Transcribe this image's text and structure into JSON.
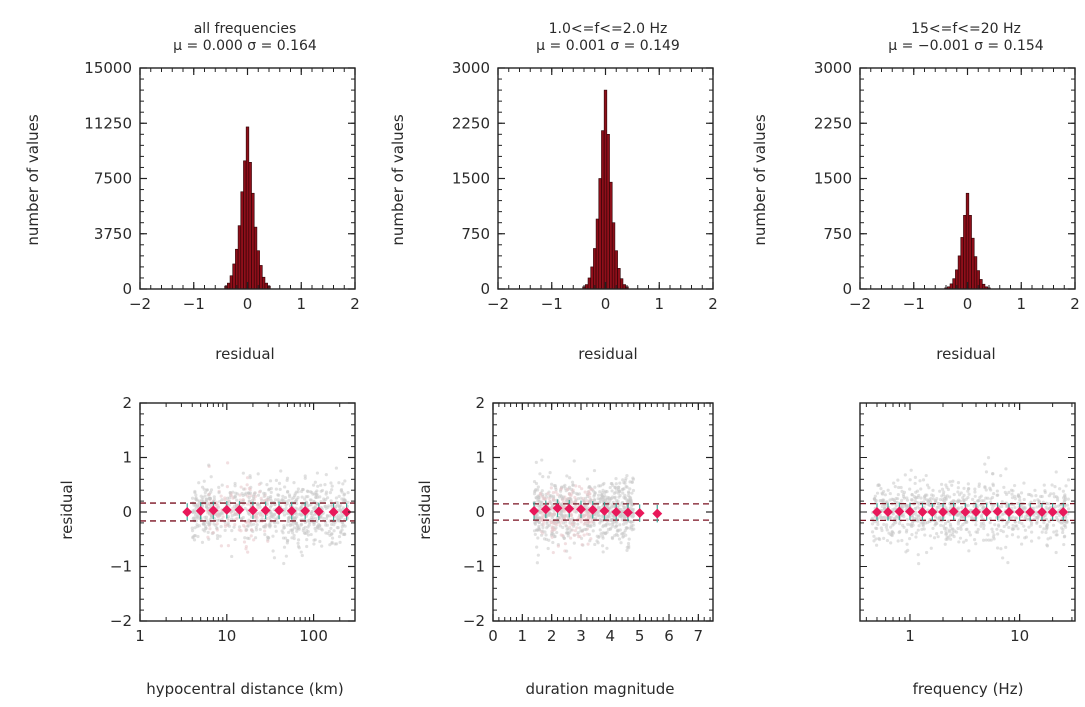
{
  "colors": {
    "bar_fill": "#8e0f1a",
    "bar_stroke": "#2b0205",
    "cloud": "#c8c8c8",
    "cloud_pink": "#e8c4c8",
    "marker": "#e8185a",
    "errbar_edge": "#3aa89a",
    "dashed": "#7a1020",
    "axis": "#222222"
  },
  "chart_data": [
    {
      "type": "bar",
      "subtype": "histogram",
      "title": "all frequencies",
      "stats": "μ = 0.000   σ = 0.164",
      "xlabel": "residual",
      "ylabel": "number of values",
      "xlim": [
        -2,
        2
      ],
      "ylim": [
        0,
        15000
      ],
      "xticks": [
        -2,
        -1,
        0,
        1,
        2
      ],
      "xtick_labels": [
        "−2",
        "−1",
        "0",
        "1",
        "2"
      ],
      "yticks": [
        0,
        3750,
        7500,
        11250,
        15000
      ],
      "ytick_labels": [
        "0",
        "3750",
        "7500",
        "11250",
        "15000"
      ],
      "bin_width": 0.05,
      "x": [
        -0.4,
        -0.35,
        -0.3,
        -0.25,
        -0.2,
        -0.15,
        -0.1,
        -0.05,
        0.0,
        0.05,
        0.1,
        0.15,
        0.2,
        0.25,
        0.3,
        0.35,
        0.4
      ],
      "values": [
        200,
        400,
        900,
        1700,
        2700,
        4300,
        6600,
        8700,
        11000,
        8600,
        6500,
        4200,
        2600,
        1600,
        800,
        400,
        200
      ]
    },
    {
      "type": "bar",
      "subtype": "histogram",
      "title": "1.0<=f<=2.0 Hz",
      "stats": "μ = 0.001   σ = 0.149",
      "xlabel": "residual",
      "ylabel": "number of values",
      "xlim": [
        -2,
        2
      ],
      "ylim": [
        0,
        3000
      ],
      "xticks": [
        -2,
        -1,
        0,
        1,
        2
      ],
      "xtick_labels": [
        "−2",
        "−1",
        "0",
        "1",
        "2"
      ],
      "yticks": [
        0,
        750,
        1500,
        2250,
        3000
      ],
      "ytick_labels": [
        "0",
        "750",
        "1500",
        "2250",
        "3000"
      ],
      "bin_width": 0.05,
      "x": [
        -0.4,
        -0.35,
        -0.3,
        -0.25,
        -0.2,
        -0.15,
        -0.1,
        -0.05,
        0.0,
        0.05,
        0.1,
        0.15,
        0.2,
        0.25,
        0.3,
        0.35,
        0.4
      ],
      "values": [
        30,
        60,
        150,
        300,
        550,
        950,
        1500,
        2150,
        2700,
        2100,
        1450,
        900,
        520,
        280,
        140,
        60,
        30
      ]
    },
    {
      "type": "bar",
      "subtype": "histogram",
      "title": "15<=f<=20 Hz",
      "stats": "μ = −0.001   σ = 0.154",
      "xlabel": "residual",
      "ylabel": "number of values",
      "xlim": [
        -2,
        2
      ],
      "ylim": [
        0,
        3000
      ],
      "xticks": [
        -2,
        -1,
        0,
        1,
        2
      ],
      "xtick_labels": [
        "−2",
        "−1",
        "0",
        "1",
        "2"
      ],
      "yticks": [
        0,
        750,
        1500,
        2250,
        3000
      ],
      "ytick_labels": [
        "0",
        "750",
        "1500",
        "2250",
        "3000"
      ],
      "bin_width": 0.05,
      "x": [
        -0.4,
        -0.35,
        -0.3,
        -0.25,
        -0.2,
        -0.15,
        -0.1,
        -0.05,
        0.0,
        0.05,
        0.1,
        0.15,
        0.2,
        0.25,
        0.3,
        0.35,
        0.4
      ],
      "values": [
        15,
        30,
        70,
        140,
        260,
        450,
        700,
        1000,
        1300,
        1000,
        690,
        440,
        250,
        130,
        65,
        30,
        15
      ]
    },
    {
      "type": "scatter",
      "xscale": "log",
      "xlabel": "hypocentral distance (km)",
      "ylabel": "residual",
      "xlim": [
        1,
        300
      ],
      "ylim": [
        -2,
        2
      ],
      "xticks": [
        1,
        10,
        100
      ],
      "xtick_labels": [
        "1",
        "10",
        "100"
      ],
      "yticks": [
        -2,
        -1,
        0,
        1,
        2
      ],
      "ytick_labels": [
        "−2",
        "−1",
        "0",
        "1",
        "2"
      ],
      "dashed_lines": [
        0.164,
        -0.164
      ],
      "cloud_x_range": [
        4,
        250
      ],
      "cloud_pink_x_range": [
        6,
        30
      ],
      "x": [
        3.5,
        5,
        7,
        10,
        14,
        20,
        28,
        40,
        56,
        80,
        115,
        170,
        240
      ],
      "values": [
        0.0,
        0.02,
        0.03,
        0.04,
        0.04,
        0.03,
        0.03,
        0.03,
        0.02,
        0.02,
        0.01,
        0.0,
        0.0
      ]
    },
    {
      "type": "scatter",
      "xlabel": "duration magnitude",
      "ylabel": "residual",
      "xlim": [
        0,
        7.5
      ],
      "ylim": [
        -2,
        2
      ],
      "xticks": [
        0,
        1,
        2,
        3,
        4,
        5,
        6,
        7
      ],
      "xtick_labels": [
        "0",
        "1",
        "2",
        "3",
        "4",
        "5",
        "6",
        "7"
      ],
      "yticks": [
        -2,
        -1,
        0,
        1,
        2
      ],
      "ytick_labels": [
        "−2",
        "−1",
        "0",
        "1",
        "2"
      ],
      "dashed_lines": [
        0.149,
        -0.149
      ],
      "cloud_x_range": [
        1.4,
        4.8
      ],
      "cloud_pink_x_range": [
        1.6,
        3.4
      ],
      "x": [
        1.4,
        1.8,
        2.2,
        2.6,
        3.0,
        3.4,
        3.8,
        4.2,
        4.6,
        5.0,
        5.6
      ],
      "values": [
        0.02,
        0.05,
        0.07,
        0.06,
        0.05,
        0.04,
        0.02,
        0.0,
        -0.01,
        -0.02,
        -0.03
      ]
    },
    {
      "type": "scatter",
      "xscale": "log",
      "xlabel": "frequency (Hz)",
      "ylabel": "",
      "xlim": [
        0.35,
        32
      ],
      "ylim": [
        -2,
        2
      ],
      "xticks": [
        1,
        10
      ],
      "xtick_labels": [
        "1",
        "10"
      ],
      "dashed_lines": [
        0.154,
        -0.154
      ],
      "cloud_x_range": [
        0.45,
        28
      ],
      "x": [
        0.5,
        0.63,
        0.8,
        1.0,
        1.3,
        1.6,
        2.0,
        2.5,
        3.2,
        4.0,
        5.0,
        6.3,
        8.0,
        10,
        12.5,
        16,
        20,
        25
      ],
      "values": [
        0.0,
        0.0,
        0.01,
        0.01,
        0.0,
        0.0,
        0.0,
        0.01,
        0.0,
        0.0,
        0.0,
        0.01,
        0.0,
        0.0,
        0.0,
        0.0,
        0.0,
        0.0
      ]
    }
  ]
}
